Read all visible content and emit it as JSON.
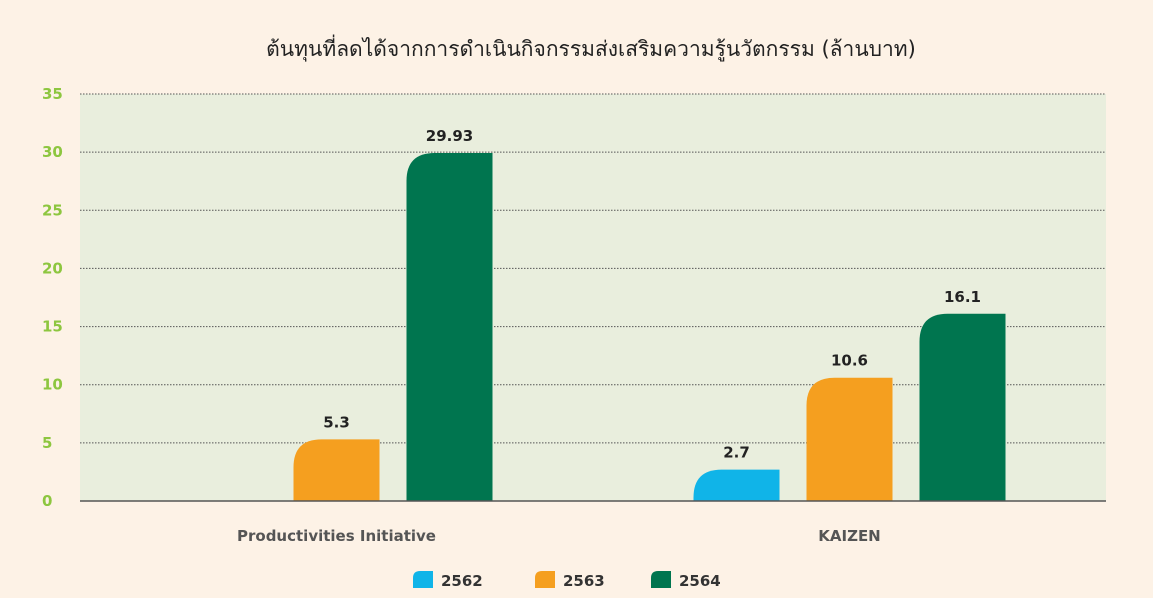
{
  "chart_data": {
    "type": "bar",
    "title": "ต้นทุนที่ลดได้จากการดำเนินกิจกรรมส่งเสริมความรู้นวัตกรรม (ล้านบาท)",
    "xlabel": "",
    "ylabel": "",
    "categories": [
      "Productivities Initiative",
      "KAIZEN"
    ],
    "series": [
      {
        "name": "2562",
        "color": "#10b4e8",
        "values": [
          null,
          2.7
        ],
        "labels": [
          "",
          "2.7"
        ]
      },
      {
        "name": "2563",
        "color": "#f59f1f",
        "values": [
          5.3,
          10.6
        ],
        "labels": [
          "5.3",
          "10.6"
        ]
      },
      {
        "name": "2564",
        "color": "#00754f",
        "values": [
          29.93,
          16.1
        ],
        "labels": [
          "29.93",
          "16.1"
        ]
      }
    ],
    "ylim": [
      0,
      35
    ],
    "yticks": [
      "0",
      "5",
      "10",
      "15",
      "20",
      "25",
      "30",
      "35"
    ],
    "grid": true,
    "legend_position": "bottom",
    "colors": {
      "background": "#fdf2e6",
      "plot_area": "#e9eedd",
      "tick_labels": "#8dc63f"
    }
  }
}
